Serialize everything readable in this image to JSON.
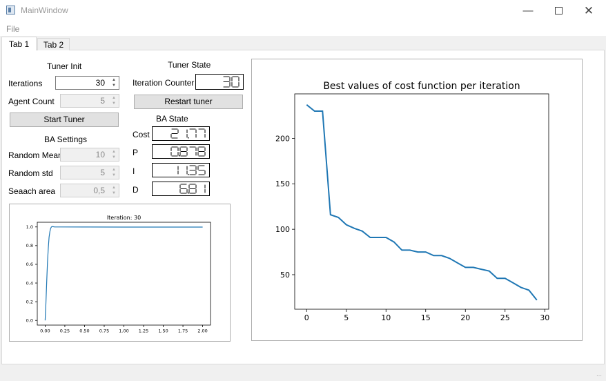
{
  "window": {
    "title": "MainWindow"
  },
  "menu": {
    "file": "File"
  },
  "tabs": [
    {
      "label": "Tab 1"
    },
    {
      "label": "Tab 2"
    }
  ],
  "tuner_init": {
    "heading": "Tuner Init",
    "iterations_label": "Iterations",
    "iterations_value": "30",
    "agent_count_label": "Agent Count",
    "agent_count_value": "5",
    "start_button": "Start Tuner"
  },
  "ba_settings": {
    "heading": "BA Settings",
    "random_mean_label": "Random Mean",
    "random_mean_value": "10",
    "random_std_label": "Random std",
    "random_std_value": "5",
    "search_area_label": "Seaach area",
    "search_area_value": "0,5"
  },
  "tuner_state": {
    "heading": "Tuner State",
    "iteration_counter_label": "Iteration Counter",
    "iteration_counter_value": "30",
    "restart_button": "Restart tuner"
  },
  "ba_state": {
    "heading": "BA State",
    "cost_label": "Cost",
    "cost_value": "21.77",
    "p_label": "P",
    "p_value": "0.878",
    "i_label": "I",
    "i_value": "11.35",
    "d_label": "D",
    "d_value": "6.81"
  },
  "colors": {
    "line": "#1f77b4"
  },
  "chart_data": [
    {
      "type": "line",
      "title": "Iteration: 30",
      "x": [
        0.0,
        0.01,
        0.02,
        0.03,
        0.04,
        0.05,
        0.06,
        0.07,
        0.08,
        0.09,
        0.1,
        0.12,
        0.15,
        0.2,
        0.5,
        1.0,
        1.5,
        2.0
      ],
      "y": [
        0.0,
        0.18,
        0.42,
        0.62,
        0.78,
        0.89,
        0.95,
        0.985,
        1.0,
        1.005,
        1.003,
        1.0,
        1.0,
        1.0,
        0.999,
        0.998,
        0.998,
        0.998
      ],
      "xlim": [
        -0.1,
        2.1
      ],
      "ylim": [
        -0.05,
        1.05
      ],
      "xticks": [
        0.0,
        0.25,
        0.5,
        0.75,
        1.0,
        1.25,
        1.5,
        1.75,
        2.0
      ],
      "xtick_labels": [
        "0.00",
        "0.25",
        "0.50",
        "0.75",
        "1.00",
        "1.25",
        "1.50",
        "1.75",
        "2.00"
      ],
      "yticks": [
        0.0,
        0.2,
        0.4,
        0.6,
        0.8,
        1.0
      ],
      "ytick_labels": [
        "0.0",
        "0.2",
        "0.4",
        "0.6",
        "0.8",
        "1.0"
      ],
      "grid": false
    },
    {
      "type": "line",
      "title": "Best values of cost function per iteration",
      "x": [
        0,
        1,
        2,
        3,
        4,
        5,
        6,
        7,
        8,
        9,
        10,
        11,
        12,
        13,
        14,
        15,
        16,
        17,
        18,
        19,
        20,
        21,
        22,
        23,
        24,
        25,
        26,
        27,
        28,
        29
      ],
      "y": [
        237,
        230,
        230,
        116,
        113,
        105,
        101,
        98,
        91,
        91,
        91,
        86,
        77,
        77,
        75,
        75,
        71,
        71,
        68,
        63,
        58,
        58,
        56,
        54,
        46,
        46,
        41,
        36,
        33,
        22
      ],
      "xlim": [
        -1.5,
        30.5
      ],
      "ylim": [
        12,
        249
      ],
      "xticks": [
        0,
        5,
        10,
        15,
        20,
        25,
        30
      ],
      "xtick_labels": [
        "0",
        "5",
        "10",
        "15",
        "20",
        "25",
        "30"
      ],
      "yticks": [
        50,
        100,
        150,
        200
      ],
      "ytick_labels": [
        "50",
        "100",
        "150",
        "200"
      ],
      "grid": false
    }
  ]
}
